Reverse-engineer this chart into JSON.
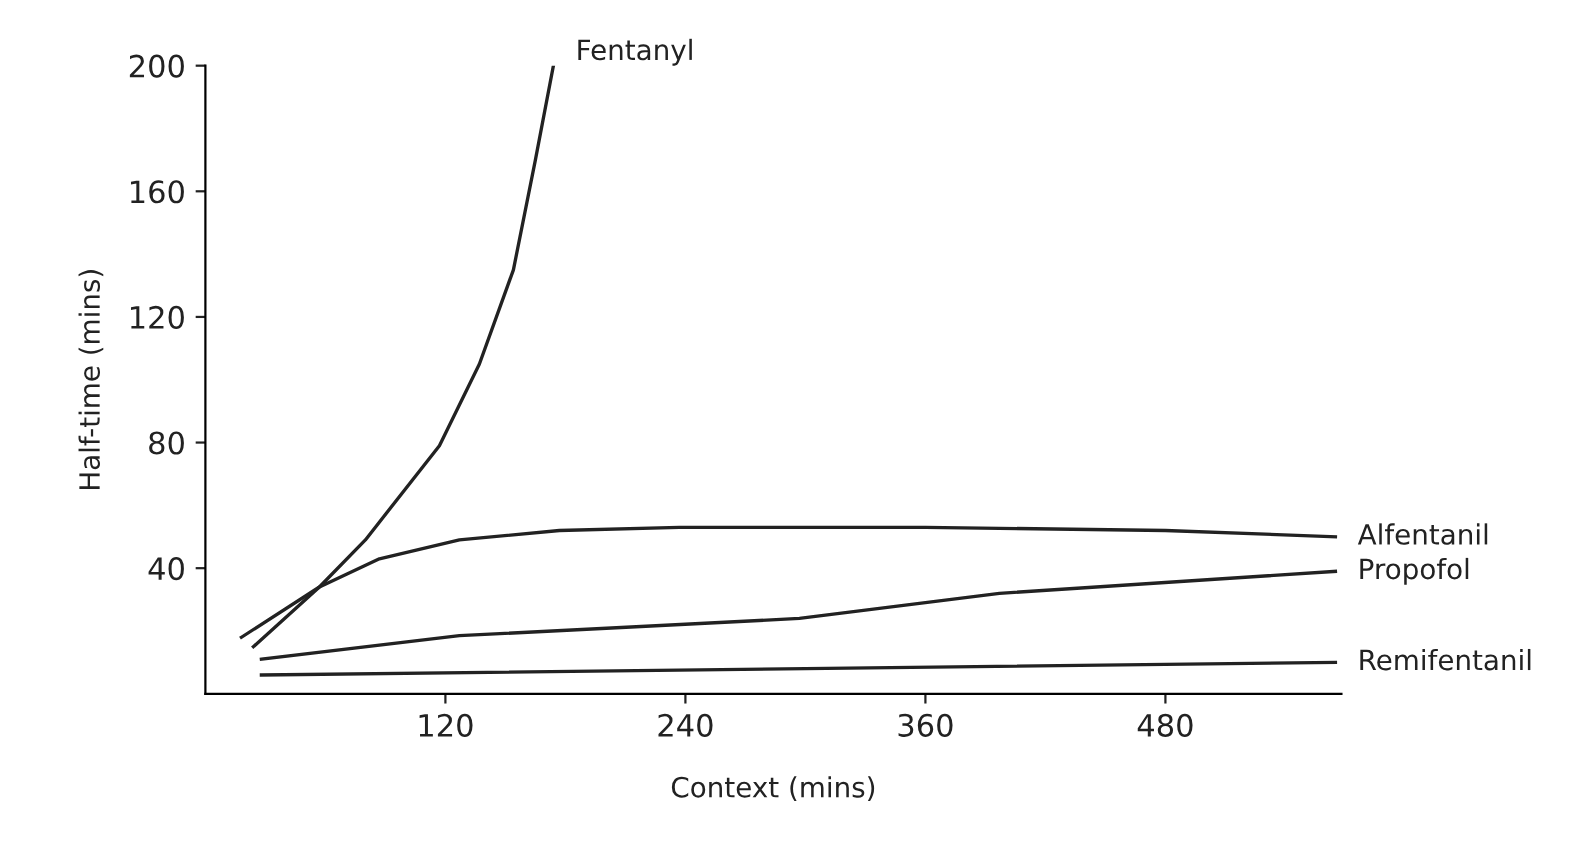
{
  "chart_data": {
    "type": "line",
    "xlabel": "Context (mins)",
    "ylabel": "Half-time (mins)",
    "xlim": [
      0,
      568
    ],
    "xticks": [
      120,
      240,
      360,
      480
    ],
    "ylim": [
      0,
      200
    ],
    "yticks": [
      40,
      80,
      120,
      160,
      200
    ],
    "grid": false,
    "legend": false,
    "marker": "none",
    "line_style": "solid",
    "series": [
      {
        "name": "Fentanyl",
        "color": "#222222",
        "x": [
          24,
          57,
          80,
          117,
          137,
          154,
          165,
          174
        ],
        "values": [
          15,
          34,
          49,
          79,
          105,
          135,
          170,
          200
        ]
      },
      {
        "name": "Alfentanil",
        "color": "#222222",
        "x": [
          18,
          57,
          87,
          127,
          177,
          237,
          360,
          480,
          565
        ],
        "values": [
          18,
          34,
          43,
          49,
          52,
          53,
          53,
          52,
          50
        ]
      },
      {
        "name": "Propofol",
        "color": "#222222",
        "x": [
          28,
          127,
          297,
          397,
          565
        ],
        "values": [
          11,
          18.5,
          24,
          32,
          39
        ]
      },
      {
        "name": "Remifentanil",
        "color": "#222222",
        "x": [
          28,
          300,
          565
        ],
        "values": [
          6,
          8,
          10
        ]
      }
    ]
  }
}
